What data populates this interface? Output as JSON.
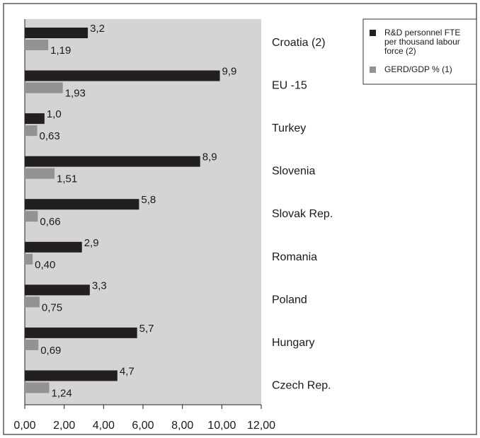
{
  "chart_data": {
    "type": "bar",
    "orientation": "horizontal",
    "categories": [
      "Croatia (2)",
      "EU -15",
      "Turkey",
      "Slovenia",
      "Slovak Rep.",
      "Romania",
      "Poland",
      "Hungary",
      "Czech Rep."
    ],
    "series": [
      {
        "name": "R&D personnel FTE per thousand labour force (2)",
        "color": "#231f20",
        "values": [
          3.2,
          9.9,
          1.0,
          8.9,
          5.8,
          2.9,
          3.3,
          5.7,
          4.7
        ],
        "value_labels": [
          "3,2",
          "9,9",
          "1,0",
          "8,9",
          "5,8",
          "2,9",
          "3,3",
          "5,7",
          "4,7"
        ]
      },
      {
        "name": "GERD/GDP % (1)",
        "color": "#929292",
        "values": [
          1.19,
          1.93,
          0.63,
          1.51,
          0.66,
          0.4,
          0.75,
          0.69,
          1.24
        ],
        "value_labels": [
          "1,19",
          "1,93",
          "0,63",
          "1,51",
          "0,66",
          "0,40",
          "0,75",
          "0,69",
          "1,24"
        ]
      }
    ],
    "xlim": [
      0,
      12
    ],
    "xticks": [
      0,
      2,
      4,
      6,
      8,
      10,
      12
    ],
    "xtick_labels": [
      "0,00",
      "2,00",
      "4,00",
      "6,00",
      "8,00",
      "10,00",
      "12,00"
    ],
    "plot_background": "#d4d4d4",
    "legend_position": "top-right",
    "grid": false
  }
}
